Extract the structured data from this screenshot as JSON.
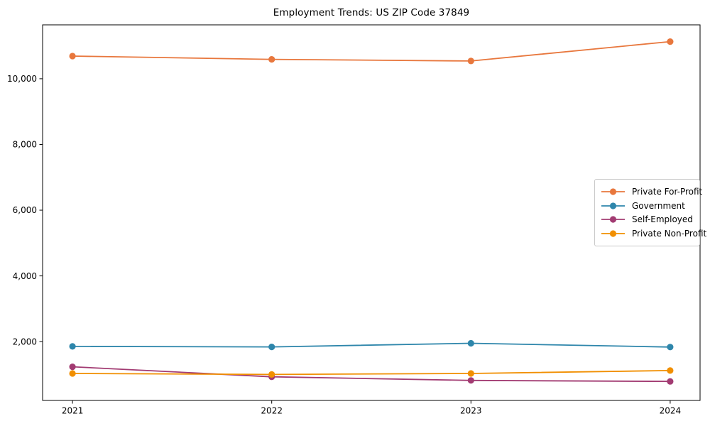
{
  "chart_data": {
    "type": "line",
    "title": "Employment Trends: US ZIP Code 37849",
    "x": [
      2021,
      2022,
      2023,
      2024
    ],
    "x_tick_labels": [
      "2021",
      "2022",
      "2023",
      "2024"
    ],
    "y_ticks": [
      2000,
      4000,
      6000,
      8000,
      10000
    ],
    "y_tick_labels": [
      "2,000",
      "4,000",
      "6,000",
      "8,000",
      "10,000"
    ],
    "xlim": [
      2020.85,
      2024.15
    ],
    "ylim": [
      210,
      11640
    ],
    "grid": false,
    "legend_position": "center-right",
    "marker": "circle",
    "series": [
      {
        "name": "Private For-Profit",
        "color": "#e8773d",
        "values": [
          10690,
          10590,
          10540,
          11130
        ]
      },
      {
        "name": "Government",
        "color": "#2e86ab",
        "values": [
          1855,
          1840,
          1950,
          1835
        ]
      },
      {
        "name": "Self-Employed",
        "color": "#a23b72",
        "values": [
          1235,
          930,
          820,
          790
        ]
      },
      {
        "name": "Private Non-Profit",
        "color": "#f18f01",
        "values": [
          1030,
          1000,
          1030,
          1120
        ]
      }
    ]
  },
  "colors": {
    "background": "#ffffff",
    "axis": "#000000",
    "tick_label": "#000000",
    "legend_border": "#c9c9c9",
    "legend_background": "#ffffff"
  }
}
